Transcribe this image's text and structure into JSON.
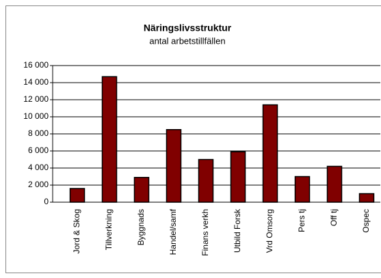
{
  "chart_data": {
    "type": "bar",
    "title": "Näringslivsstruktur",
    "subtitle": "antal arbetstillfällen",
    "categories": [
      "Jord & Skog",
      "Tillverkning",
      "Byggnads",
      "Handel/samf",
      "Finans verkh",
      "Utbild Forsk",
      "Vrd Omsorg",
      "Pers tj",
      "Off tj",
      "Ospec"
    ],
    "values": [
      1600,
      14700,
      2900,
      8500,
      5000,
      5900,
      11400,
      3000,
      4200,
      1000
    ],
    "color": "#800000",
    "ylim": [
      0,
      16000
    ],
    "yticks": [
      0,
      {
        "value": 2000,
        "label": "2 000"
      },
      {
        "value": 4000,
        "label": "4 000"
      },
      {
        "value": 6000,
        "label": "6 000"
      },
      {
        "value": 8000,
        "label": "8 000"
      },
      {
        "value": 10000,
        "label": "10 000"
      },
      {
        "value": 12000,
        "label": "12 000"
      },
      {
        "value": 14000,
        "label": "14 000"
      },
      {
        "value": 16000,
        "label": "16 000"
      }
    ],
    "grid": true
  }
}
